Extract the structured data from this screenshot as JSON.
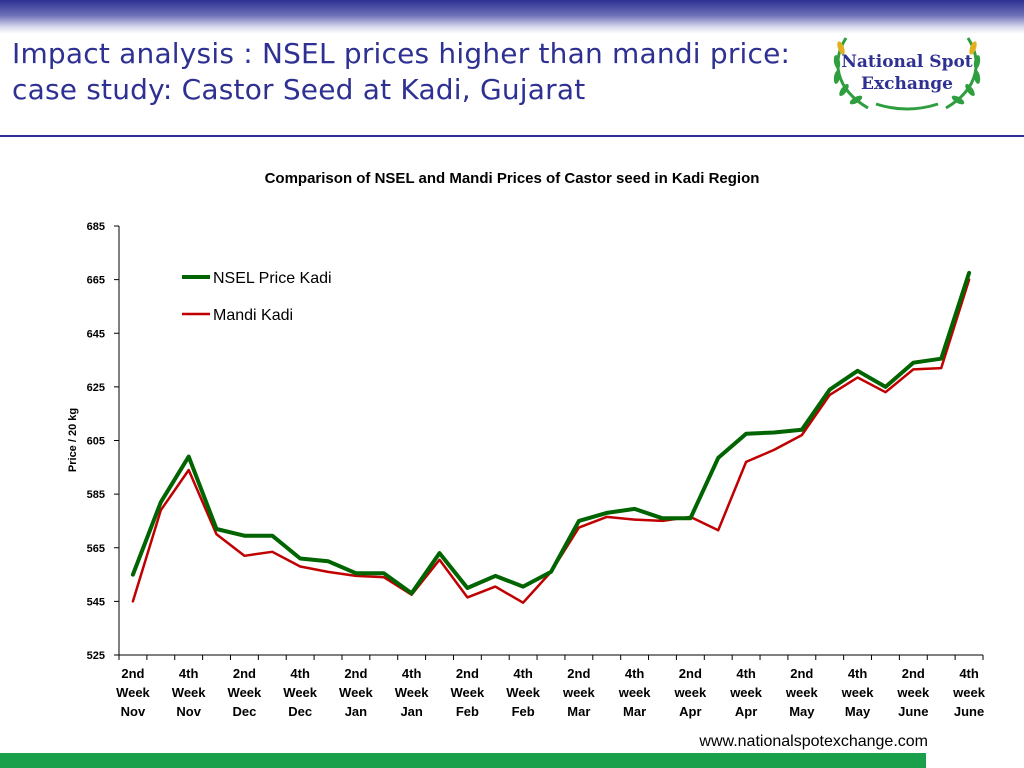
{
  "slide": {
    "title_line1": "Impact analysis : NSEL prices higher than mandi price:",
    "title_line2": "case study: Castor Seed at Kadi, Gujarat",
    "logo_line1": "National Spot",
    "logo_line2": "Exchange",
    "footer_url": "www.nationalspotexchange.com"
  },
  "colors": {
    "title": "#2e3192",
    "nsel": "#006400",
    "mandi": "#c00000",
    "footer_bar": "#1aa04a"
  },
  "chart_data": {
    "type": "line",
    "title": "Comparison of NSEL and Mandi Prices of Castor seed in Kadi Region",
    "xlabel": "",
    "ylabel": "Price / 20 kg",
    "ylim": [
      525,
      685
    ],
    "yticks": [
      525,
      545,
      565,
      585,
      605,
      625,
      645,
      665,
      685
    ],
    "legend_position": "top-left",
    "grid": false,
    "categories": [
      "2nd Week Nov",
      "",
      "4th Week Nov",
      "",
      "2nd Week Dec",
      "",
      "4th Week Dec",
      "",
      "2nd Week Jan",
      "",
      "4th Week Jan",
      "",
      "2nd Week Feb",
      "",
      "4th Week Feb",
      "",
      "2nd week Mar",
      "",
      "4th week Mar",
      "",
      "2nd week Apr",
      "",
      "4th week Apr",
      "",
      "2nd week May",
      "",
      "4th week May",
      "",
      "2nd week June",
      "",
      "4th week June"
    ],
    "tick_labels": [
      [
        "2nd",
        "Week",
        "Nov"
      ],
      [
        "4th",
        "Week",
        "Nov"
      ],
      [
        "2nd",
        "Week",
        "Dec"
      ],
      [
        "4th",
        "Week",
        "Dec"
      ],
      [
        "2nd",
        "Week",
        "Jan"
      ],
      [
        "4th",
        "Week",
        "Jan"
      ],
      [
        "2nd",
        "Week",
        "Feb"
      ],
      [
        "4th",
        "Week",
        "Feb"
      ],
      [
        "2nd",
        "week",
        "Mar"
      ],
      [
        "4th",
        "week",
        "Mar"
      ],
      [
        "2nd",
        "week",
        "Apr"
      ],
      [
        "4th",
        "week",
        "Apr"
      ],
      [
        "2nd",
        "week",
        "May"
      ],
      [
        "4th",
        "week",
        "May"
      ],
      [
        "2nd",
        "week",
        "June"
      ],
      [
        "4th",
        "week",
        "June"
      ]
    ],
    "series": [
      {
        "name": "NSEL Price Kadi",
        "color": "#006400",
        "values": [
          555,
          582,
          599,
          572,
          569.5,
          569.5,
          561,
          560,
          555.5,
          555.5,
          548,
          563,
          550,
          554.5,
          550.5,
          556,
          575,
          578,
          579.5,
          576,
          576,
          598.5,
          607.5,
          608,
          609,
          624,
          631,
          625,
          634,
          635.5,
          667.5
        ]
      },
      {
        "name": "Mandi Kadi",
        "color": "#c00000",
        "values": [
          545,
          579,
          594,
          570,
          562,
          563.5,
          558,
          556,
          554.5,
          554,
          547.5,
          560.5,
          546.5,
          550.5,
          544.5,
          556,
          572.5,
          576.5,
          575.5,
          575,
          576.5,
          571.5,
          597,
          601.5,
          607,
          622,
          628.5,
          623,
          631.5,
          632,
          665
        ]
      }
    ]
  }
}
